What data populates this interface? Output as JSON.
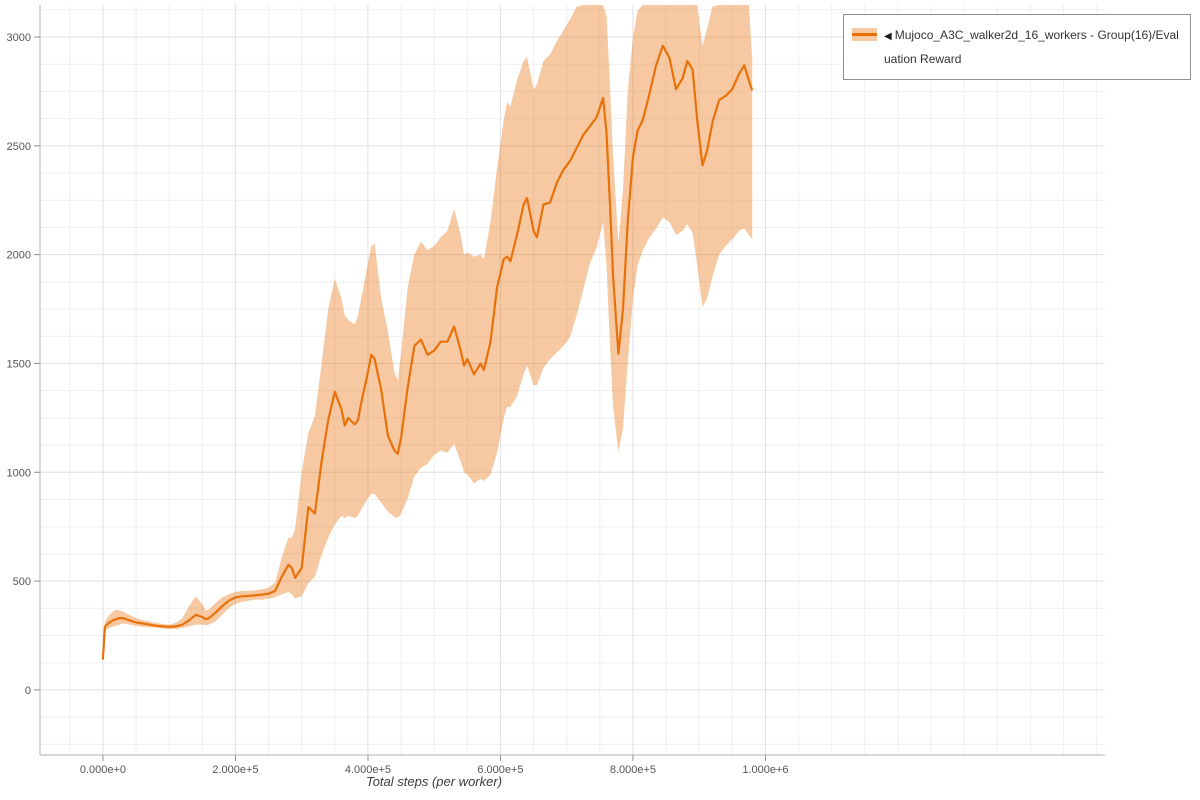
{
  "legend": {
    "collapse_icon": "◀",
    "label": "Mujoco_A3C_walker2d_16_workers - Group(16)/Evaluation Reward"
  },
  "chart_data": {
    "type": "line",
    "title": "",
    "xlabel": "Total steps (per worker)",
    "ylabel": "",
    "xlim": [
      -95000,
      1512500
    ],
    "ylim": [
      -299,
      3147
    ],
    "grid": {
      "minor_x_step": 50000,
      "minor_y_step": 125,
      "minor_color": "#efefef",
      "major_color": "#e2e2e2"
    },
    "style": {
      "axis_color": "#b0b0b0",
      "tick_color": "#8f8f8f",
      "label_color": "#555555",
      "band_opacity": 0.38
    },
    "x_ticks": [
      {
        "value": 0,
        "label": "0.000e+0"
      },
      {
        "value": 200000,
        "label": "2.000e+5"
      },
      {
        "value": 400000,
        "label": "4.000e+5"
      },
      {
        "value": 600000,
        "label": "6.000e+5"
      },
      {
        "value": 800000,
        "label": "8.000e+5"
      },
      {
        "value": 1000000,
        "label": "1.000e+6"
      }
    ],
    "y_ticks": [
      {
        "value": 0,
        "label": "0"
      },
      {
        "value": 500,
        "label": "500"
      },
      {
        "value": 1000,
        "label": "1000"
      },
      {
        "value": 1500,
        "label": "1500"
      },
      {
        "value": 2000,
        "label": "2000"
      },
      {
        "value": 2500,
        "label": "2500"
      },
      {
        "value": 3000,
        "label": "3000"
      }
    ],
    "series": [
      {
        "name": "Mujoco_A3C_walker2d_16_workers - Group(16)/Evaluation Reward",
        "color": "#e8710a",
        "band_swatch": "#f6c9a2",
        "x": [
          0,
          3000,
          6000,
          10000,
          15000,
          20000,
          25000,
          30000,
          40000,
          50000,
          60000,
          70000,
          80000,
          90000,
          100000,
          110000,
          120000,
          130000,
          140000,
          150000,
          155000,
          160000,
          170000,
          180000,
          190000,
          200000,
          210000,
          220000,
          230000,
          240000,
          250000,
          260000,
          270000,
          280000,
          285000,
          290000,
          300000,
          310000,
          320000,
          330000,
          340000,
          350000,
          360000,
          365000,
          370000,
          380000,
          385000,
          390000,
          400000,
          405000,
          410000,
          420000,
          430000,
          440000,
          445000,
          450000,
          460000,
          470000,
          480000,
          490000,
          500000,
          510000,
          520000,
          530000,
          540000,
          545000,
          550000,
          560000,
          570000,
          575000,
          585000,
          595000,
          605000,
          610000,
          615000,
          625000,
          635000,
          640000,
          650000,
          655000,
          665000,
          675000,
          685000,
          695000,
          705000,
          715000,
          725000,
          735000,
          745000,
          755000,
          760000,
          765000,
          770000,
          778000,
          785000,
          792000,
          800000,
          807000,
          815000,
          825000,
          835000,
          845000,
          855000,
          865000,
          875000,
          882000,
          890000,
          897000,
          905000,
          912000,
          920000,
          930000,
          940000,
          950000,
          960000,
          968000,
          975000,
          980000
        ],
        "mean": [
          140,
          290,
          300,
          310,
          320,
          325,
          330,
          330,
          320,
          310,
          305,
          300,
          295,
          292,
          290,
          292,
          300,
          320,
          345,
          335,
          325,
          330,
          355,
          385,
          410,
          425,
          430,
          432,
          435,
          438,
          442,
          455,
          520,
          575,
          560,
          515,
          560,
          840,
          810,
          1050,
          1240,
          1370,
          1290,
          1215,
          1250,
          1220,
          1240,
          1320,
          1460,
          1540,
          1520,
          1380,
          1170,
          1100,
          1085,
          1160,
          1390,
          1580,
          1610,
          1540,
          1560,
          1600,
          1600,
          1670,
          1560,
          1490,
          1520,
          1450,
          1500,
          1470,
          1600,
          1850,
          1980,
          1990,
          1970,
          2090,
          2230,
          2260,
          2110,
          2080,
          2230,
          2240,
          2330,
          2390,
          2430,
          2490,
          2550,
          2590,
          2630,
          2720,
          2560,
          2250,
          1900,
          1545,
          1750,
          2150,
          2450,
          2570,
          2620,
          2740,
          2870,
          2960,
          2905,
          2760,
          2810,
          2890,
          2850,
          2620,
          2410,
          2480,
          2610,
          2710,
          2730,
          2760,
          2830,
          2870,
          2800,
          2755
        ],
        "lower": [
          128,
          268,
          278,
          285,
          290,
          295,
          300,
          305,
          300,
          295,
          290,
          288,
          285,
          282,
          280,
          280,
          285,
          292,
          300,
          300,
          298,
          300,
          315,
          345,
          375,
          395,
          405,
          410,
          415,
          415,
          420,
          425,
          440,
          450,
          440,
          420,
          430,
          490,
          520,
          620,
          700,
          760,
          800,
          790,
          800,
          790,
          800,
          830,
          880,
          900,
          900,
          860,
          820,
          795,
          790,
          810,
          880,
          980,
          1020,
          1040,
          1080,
          1100,
          1090,
          1130,
          1050,
          1000,
          990,
          950,
          970,
          960,
          990,
          1090,
          1250,
          1300,
          1300,
          1350,
          1450,
          1490,
          1400,
          1400,
          1480,
          1520,
          1550,
          1580,
          1620,
          1720,
          1840,
          1960,
          2030,
          2150,
          1950,
          1600,
          1300,
          1095,
          1200,
          1500,
          1800,
          1950,
          2020,
          2080,
          2120,
          2170,
          2150,
          2090,
          2110,
          2140,
          2100,
          1950,
          1760,
          1800,
          1900,
          2000,
          2040,
          2070,
          2110,
          2120,
          2090,
          2070
        ],
        "upper": [
          152,
          312,
          330,
          345,
          360,
          370,
          365,
          360,
          345,
          330,
          320,
          315,
          308,
          303,
          300,
          308,
          330,
          385,
          430,
          395,
          365,
          370,
          400,
          425,
          440,
          450,
          455,
          455,
          458,
          462,
          470,
          495,
          610,
          700,
          700,
          740,
          1000,
          1180,
          1260,
          1500,
          1750,
          1890,
          1800,
          1720,
          1700,
          1680,
          1720,
          1800,
          1960,
          2040,
          2050,
          1800,
          1650,
          1460,
          1420,
          1550,
          1850,
          2000,
          2060,
          2020,
          2040,
          2080,
          2110,
          2210,
          2090,
          2000,
          2010,
          1990,
          2000,
          1980,
          2150,
          2400,
          2620,
          2700,
          2680,
          2800,
          2890,
          2910,
          2760,
          2780,
          2890,
          2920,
          2980,
          3030,
          3080,
          3140,
          3200,
          3260,
          3280,
          3270,
          3100,
          2800,
          2450,
          2050,
          2300,
          2750,
          3000,
          3120,
          3220,
          3290,
          3300,
          3300,
          3290,
          3260,
          3300,
          3300,
          3280,
          3150,
          2960,
          3040,
          3140,
          3240,
          3280,
          3300,
          3300,
          3280,
          3180,
          2900
        ]
      }
    ]
  }
}
